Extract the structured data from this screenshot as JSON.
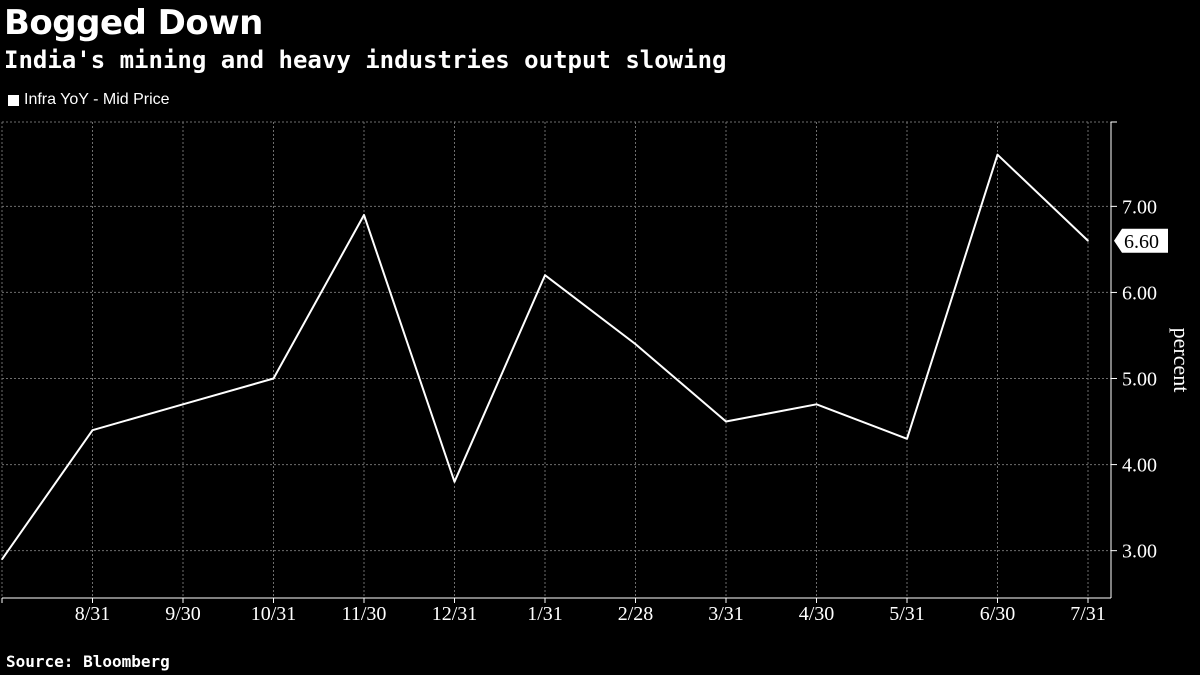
{
  "header": {
    "title": "Bogged Down",
    "subtitle": "India's mining and heavy industries output slowing"
  },
  "footer": {
    "source": "Source: Bloomberg"
  },
  "colors": {
    "background": "#000000",
    "line": "#ffffff",
    "grid": "#6e6e6e"
  },
  "chart_data": {
    "type": "line",
    "title": "",
    "xlabel": "",
    "ylabel": "percent",
    "legend": "top-left",
    "grid": true,
    "ylim": [
      2.45,
      7.98
    ],
    "y_ticks": [
      3.0,
      4.0,
      5.0,
      6.0,
      7.0
    ],
    "y_tick_labels": [
      "3.00",
      "4.00",
      "5.00",
      "6.00",
      "7.00"
    ],
    "x_tick_labels": [
      "8/31",
      "9/30",
      "10/31",
      "11/30",
      "12/31",
      "1/31",
      "2/28",
      "3/31",
      "4/30",
      "5/31",
      "6/30",
      "7/31"
    ],
    "last_value_label": "6.60",
    "series": [
      {
        "name": "Infra YoY - Mid Price",
        "x": [
          "7/31",
          "8/31",
          "9/30",
          "10/31",
          "11/30",
          "12/31",
          "1/31",
          "2/28",
          "3/31",
          "4/30",
          "5/31",
          "6/30",
          "7/31"
        ],
        "values": [
          2.9,
          4.4,
          4.7,
          5.0,
          6.9,
          3.8,
          6.2,
          5.4,
          4.5,
          4.7,
          4.3,
          7.6,
          6.6
        ]
      }
    ]
  }
}
